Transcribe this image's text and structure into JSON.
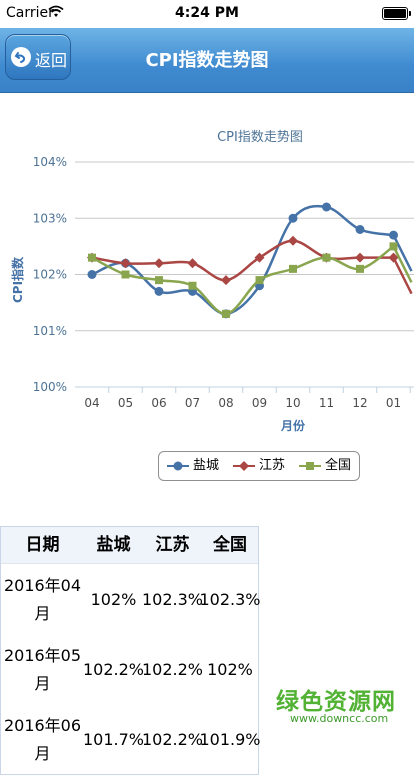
{
  "status_bar": {
    "carrier": "Carrier",
    "time": "4:24 PM"
  },
  "nav": {
    "back_label": "返回",
    "title": "CPI指数走势图"
  },
  "chart_data": {
    "type": "line",
    "title": "CPI指数走势图",
    "xlabel": "月份",
    "ylabel": "CPI指数",
    "categories": [
      "04",
      "05",
      "06",
      "07",
      "08",
      "09",
      "10",
      "11",
      "12",
      "01"
    ],
    "ylim": [
      100,
      104
    ],
    "yticks": [
      "100%",
      "101%",
      "102%",
      "103%",
      "104%"
    ],
    "grid": true,
    "legend_placement": "bottom",
    "series": [
      {
        "name": "盐城",
        "color": "#4572a7",
        "marker": "circle",
        "values": [
          102.0,
          102.2,
          101.7,
          101.7,
          101.3,
          101.8,
          103.0,
          103.2,
          102.8,
          102.7
        ]
      },
      {
        "name": "江苏",
        "color": "#aa4643",
        "marker": "diamond",
        "values": [
          102.3,
          102.2,
          102.2,
          102.2,
          101.9,
          102.3,
          102.6,
          102.3,
          102.3,
          102.3
        ]
      },
      {
        "name": "全国",
        "color": "#89a54e",
        "marker": "square",
        "values": [
          102.3,
          102.0,
          101.9,
          101.8,
          101.3,
          101.9,
          102.1,
          102.3,
          102.1,
          102.5
        ]
      }
    ]
  },
  "table": {
    "headers": [
      "日期",
      "盐城",
      "江苏",
      "全国"
    ],
    "rows": [
      {
        "date_line1": "2016年04",
        "date_line2": "月",
        "yancheng": "102%",
        "jiangsu": "102.3%",
        "national": "102.3%"
      },
      {
        "date_line1": "2016年05",
        "date_line2": "月",
        "yancheng": "102.2%",
        "jiangsu": "102.2%",
        "national": "102%"
      },
      {
        "date_line1": "2016年06",
        "date_line2": "月",
        "yancheng": "101.7%",
        "jiangsu": "102.2%",
        "national": "101.9%"
      }
    ]
  },
  "watermark": {
    "text": "绿色资源网",
    "url": "www.downcc.com"
  }
}
